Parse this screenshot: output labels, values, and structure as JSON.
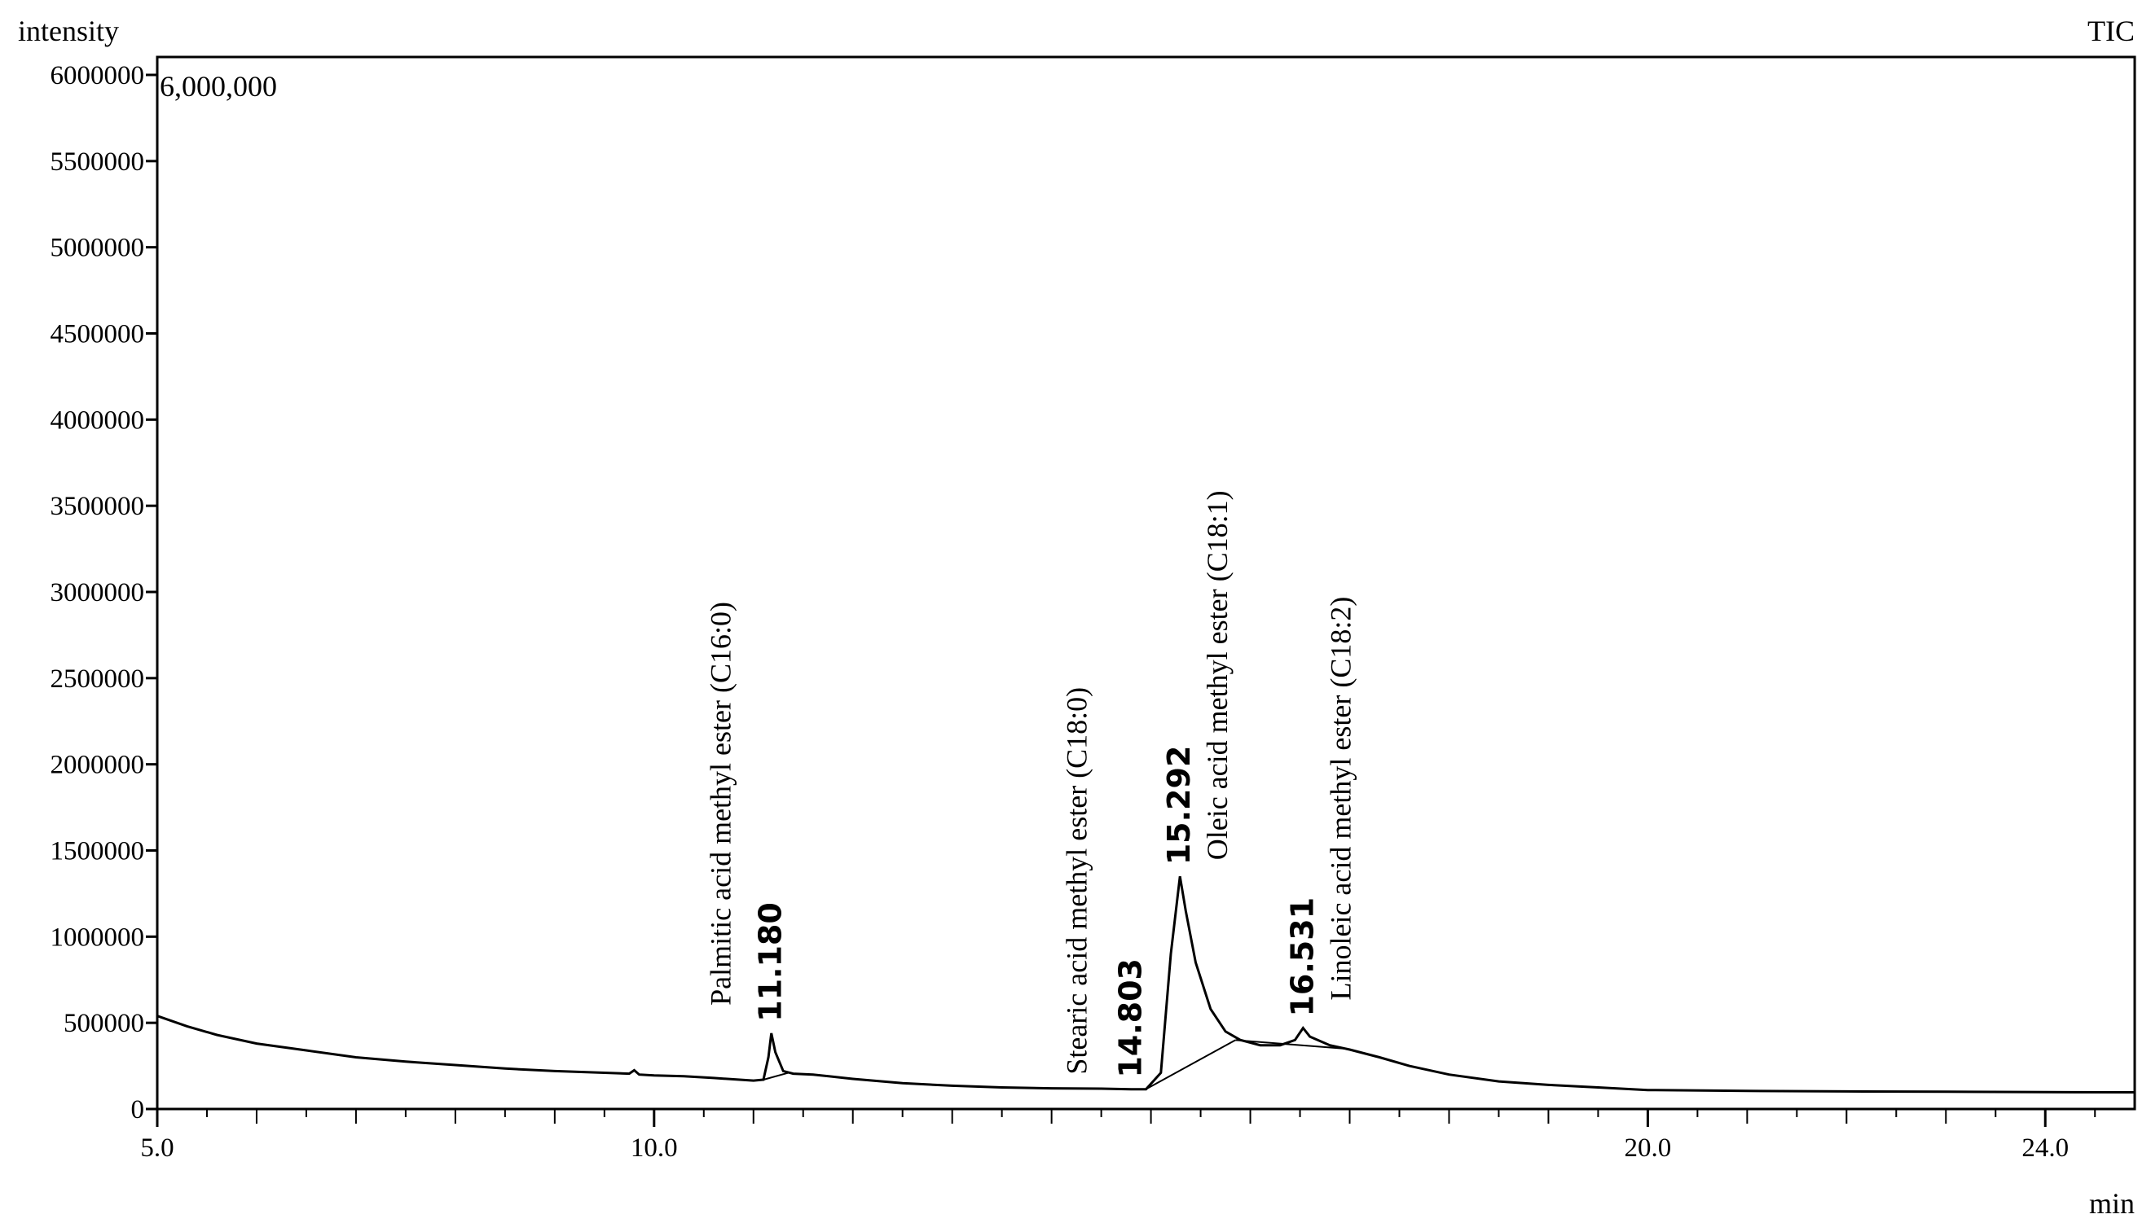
{
  "chart_data": {
    "type": "line",
    "ylabel": "intensity",
    "xlabel": "min",
    "trace_label": "TIC",
    "scale_label": "6,000,000",
    "xlim": [
      5.0,
      24.9
    ],
    "ylim": [
      0,
      6000000
    ],
    "x_ticks": [
      5.0,
      10.0,
      20.0,
      24.0
    ],
    "x_tick_labels": [
      "5.0",
      "10.0",
      "20.0",
      "24.0"
    ],
    "y_ticks": [
      0,
      500000,
      1000000,
      1500000,
      2000000,
      2500000,
      3000000,
      3500000,
      4000000,
      4500000,
      5000000,
      5500000,
      6000000
    ],
    "y_tick_labels": [
      "0",
      "500000",
      "1000000",
      "1500000",
      "2000000",
      "2500000",
      "3000000",
      "3500000",
      "4000000",
      "4500000",
      "5000000",
      "5500000",
      "6000000"
    ],
    "series": [
      {
        "name": "TIC",
        "points": [
          [
            5.0,
            540000
          ],
          [
            5.3,
            480000
          ],
          [
            5.6,
            430000
          ],
          [
            6.0,
            380000
          ],
          [
            6.5,
            340000
          ],
          [
            7.0,
            300000
          ],
          [
            7.5,
            275000
          ],
          [
            8.0,
            255000
          ],
          [
            8.5,
            235000
          ],
          [
            9.0,
            220000
          ],
          [
            9.5,
            210000
          ],
          [
            9.75,
            205000
          ],
          [
            9.8,
            225000
          ],
          [
            9.85,
            200000
          ],
          [
            10.0,
            195000
          ],
          [
            10.3,
            190000
          ],
          [
            10.6,
            180000
          ],
          [
            11.0,
            165000
          ],
          [
            11.1,
            170000
          ],
          [
            11.15,
            300000
          ],
          [
            11.18,
            440000
          ],
          [
            11.22,
            330000
          ],
          [
            11.3,
            220000
          ],
          [
            11.4,
            205000
          ],
          [
            11.6,
            200000
          ],
          [
            12.0,
            175000
          ],
          [
            12.5,
            150000
          ],
          [
            13.0,
            135000
          ],
          [
            13.5,
            125000
          ],
          [
            14.0,
            120000
          ],
          [
            14.5,
            118000
          ],
          [
            14.8,
            115000
          ],
          [
            14.95,
            115000
          ],
          [
            15.1,
            210000
          ],
          [
            15.2,
            900000
          ],
          [
            15.292,
            1350000
          ],
          [
            15.35,
            1150000
          ],
          [
            15.45,
            850000
          ],
          [
            15.6,
            580000
          ],
          [
            15.75,
            450000
          ],
          [
            15.9,
            400000
          ],
          [
            16.1,
            370000
          ],
          [
            16.3,
            370000
          ],
          [
            16.45,
            400000
          ],
          [
            16.531,
            470000
          ],
          [
            16.6,
            420000
          ],
          [
            16.8,
            370000
          ],
          [
            17.0,
            345000
          ],
          [
            17.3,
            300000
          ],
          [
            17.6,
            250000
          ],
          [
            18.0,
            200000
          ],
          [
            18.5,
            160000
          ],
          [
            19.0,
            140000
          ],
          [
            19.5,
            125000
          ],
          [
            20.0,
            110000
          ],
          [
            21.0,
            105000
          ],
          [
            22.0,
            102000
          ],
          [
            23.0,
            100000
          ],
          [
            24.0,
            98000
          ],
          [
            24.9,
            97000
          ]
        ]
      }
    ],
    "peaks": [
      {
        "rt_label": "11.180",
        "x": 11.18,
        "y": 440000,
        "compound": "Palmitic acid methyl ester (C16:0)"
      },
      {
        "rt_label": "14.803",
        "x": 14.803,
        "y": 115000,
        "compound": "Stearic acid methyl ester (C18:0)"
      },
      {
        "rt_label": "15.292",
        "x": 15.292,
        "y": 1350000,
        "compound": "Oleic acid methyl ester (C18:1)"
      },
      {
        "rt_label": "16.531",
        "x": 16.531,
        "y": 470000,
        "compound": "Linoleic acid methyl ester (C18:2)"
      }
    ],
    "grid": false,
    "legend": "none"
  }
}
